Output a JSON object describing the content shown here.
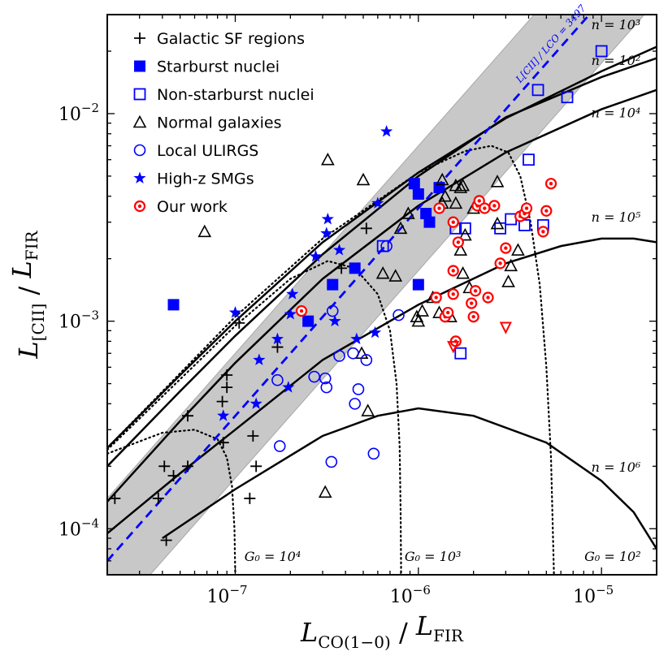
{
  "chart_data": {
    "type": "scatter",
    "x_scale": "log",
    "y_scale": "log",
    "xlim": [
      2e-08,
      2e-05
    ],
    "ylim": [
      6e-05,
      0.03
    ],
    "x_ticks": [
      {
        "value": 1e-07,
        "label": "10",
        "exp": "−7"
      },
      {
        "value": 1e-06,
        "label": "10",
        "exp": "−6"
      },
      {
        "value": 1e-05,
        "label": "10",
        "exp": "−5"
      }
    ],
    "y_ticks": [
      {
        "value": 0.0001,
        "label": "10",
        "exp": "−4"
      },
      {
        "value": 0.001,
        "label": "10",
        "exp": "−3"
      },
      {
        "value": 0.01,
        "label": "10",
        "exp": "−2"
      }
    ],
    "xlabel": {
      "main": "L",
      "sub": "CO(1−0)",
      "sep": " / ",
      "main2": "L",
      "sub2": "FIR"
    },
    "ylabel": {
      "main": "L",
      "sub": "[CII]",
      "sep": " / ",
      "main2": "L",
      "sub2": "FIR"
    },
    "legend_position": "top-left",
    "grid": false,
    "series": [
      {
        "name": "Galactic SF regions",
        "marker": "plus",
        "color": "#000000",
        "points": [
          [
            2.2e-08,
            0.00014
          ],
          [
            3.8e-08,
            0.00014
          ],
          [
            4.1e-08,
            0.0002
          ],
          [
            4.2e-08,
            8.8e-05
          ],
          [
            4.6e-08,
            0.00018
          ],
          [
            5.5e-08,
            0.00035
          ],
          [
            5.5e-08,
            0.0002
          ],
          [
            8.5e-08,
            0.00041
          ],
          [
            8.6e-08,
            0.00026
          ],
          [
            9e-08,
            0.00048
          ],
          [
            9e-08,
            0.00055
          ],
          [
            1.05e-07,
            0.00098
          ],
          [
            1.2e-07,
            0.00014
          ],
          [
            1.25e-07,
            0.00028
          ],
          [
            1.3e-07,
            0.0002
          ],
          [
            1.7e-07,
            0.00075
          ],
          [
            3.8e-07,
            0.0018
          ],
          [
            5.2e-07,
            0.0028
          ]
        ]
      },
      {
        "name": "Starburst nuclei",
        "marker": "square",
        "color": "#0000ff",
        "points": [
          [
            4.6e-08,
            0.0012
          ],
          [
            2.5e-07,
            0.001
          ],
          [
            3.4e-07,
            0.0015
          ],
          [
            4.5e-07,
            0.0018
          ],
          [
            9.5e-07,
            0.0046
          ],
          [
            1e-06,
            0.0041
          ],
          [
            1.1e-06,
            0.0033
          ],
          [
            1.15e-06,
            0.003
          ],
          [
            1.3e-06,
            0.0044
          ],
          [
            1e-06,
            0.0015
          ]
        ]
      },
      {
        "name": "Non-starburst nuclei",
        "marker": "square-open",
        "color": "#0000ff",
        "points": [
          [
            6.4e-07,
            0.0023
          ],
          [
            1.6e-06,
            0.0028
          ],
          [
            1.8e-06,
            0.0028
          ],
          [
            2.8e-06,
            0.0028
          ],
          [
            3.2e-06,
            0.0031
          ],
          [
            3.8e-06,
            0.0029
          ],
          [
            4e-06,
            0.006
          ],
          [
            4.5e-06,
            0.013
          ],
          [
            4.8e-06,
            0.0029
          ],
          [
            6.5e-06,
            0.012
          ],
          [
            1e-05,
            0.02
          ],
          [
            1.7e-06,
            0.0007
          ]
        ]
      },
      {
        "name": "Normal galaxies",
        "marker": "triangle-open",
        "color": "#000000",
        "points": [
          [
            6.8e-08,
            0.0027
          ],
          [
            3.2e-07,
            0.006
          ],
          [
            5e-07,
            0.0048
          ],
          [
            4.9e-07,
            0.0007
          ],
          [
            5.3e-07,
            0.00037
          ],
          [
            3.1e-07,
            0.00015
          ],
          [
            6.4e-07,
            0.0017
          ],
          [
            7.5e-07,
            0.00165
          ],
          [
            8e-07,
            0.0028
          ],
          [
            8.8e-07,
            0.0033
          ],
          [
            9.8e-07,
            0.00105
          ],
          [
            1e-06,
            0.001
          ],
          [
            1.05e-06,
            0.00112
          ],
          [
            1.2e-06,
            0.0013
          ],
          [
            1.3e-06,
            0.0011
          ],
          [
            1.35e-06,
            0.0037
          ],
          [
            1.35e-06,
            0.0048
          ],
          [
            1.4e-06,
            0.004
          ],
          [
            1.5e-06,
            0.00105
          ],
          [
            1.6e-06,
            0.0045
          ],
          [
            1.6e-06,
            0.0037
          ],
          [
            1.7e-06,
            0.0044
          ],
          [
            1.75e-06,
            0.0045
          ],
          [
            1.8e-06,
            0.0026
          ],
          [
            1.75e-06,
            0.0017
          ],
          [
            1.9e-06,
            0.00145
          ],
          [
            2e-06,
            0.0035
          ],
          [
            2.7e-06,
            0.0047
          ],
          [
            2.7e-06,
            0.00295
          ],
          [
            3.1e-06,
            0.00155
          ],
          [
            3.2e-06,
            0.00185
          ],
          [
            3.5e-06,
            0.0022
          ],
          [
            1.7e-06,
            0.0022
          ]
        ]
      },
      {
        "name": "Local ULIRGS",
        "marker": "circle-open",
        "color": "#0000ff",
        "points": [
          [
            1.7e-07,
            0.00052
          ],
          [
            1.75e-07,
            0.00025
          ],
          [
            2.7e-07,
            0.00054
          ],
          [
            3.1e-07,
            0.00053
          ],
          [
            3.15e-07,
            0.00048
          ],
          [
            3.35e-07,
            0.00021
          ],
          [
            3.4e-07,
            0.00112
          ],
          [
            3.7e-07,
            0.00068
          ],
          [
            4.4e-07,
            0.0007
          ],
          [
            4.5e-07,
            0.0004
          ],
          [
            4.7e-07,
            0.00047
          ],
          [
            5.2e-07,
            0.00065
          ],
          [
            5.7e-07,
            0.00023
          ],
          [
            6.7e-07,
            0.0023
          ],
          [
            7.8e-07,
            0.00107
          ]
        ]
      },
      {
        "name": "High-z SMGs",
        "marker": "star",
        "color": "#0000ff",
        "points": [
          [
            8.6e-08,
            0.00035
          ],
          [
            1e-07,
            0.0011
          ],
          [
            1.3e-07,
            0.0004
          ],
          [
            1.35e-07,
            0.00065
          ],
          [
            1.7e-07,
            0.00082
          ],
          [
            1.95e-07,
            0.00048
          ],
          [
            2e-07,
            0.00108
          ],
          [
            2.05e-07,
            0.00135
          ],
          [
            2.75e-07,
            0.00205
          ],
          [
            3.15e-07,
            0.00265
          ],
          [
            3.2e-07,
            0.0031
          ],
          [
            3.5e-07,
            0.001
          ],
          [
            3.7e-07,
            0.0022
          ],
          [
            4.6e-07,
            0.00082
          ],
          [
            5.8e-07,
            0.00088
          ],
          [
            6e-07,
            0.0037
          ],
          [
            6.7e-07,
            0.0082
          ]
        ]
      },
      {
        "name": "Our work",
        "marker": "circle-dot",
        "color": "#ff0000",
        "points": [
          [
            2.3e-07,
            0.00112
          ],
          [
            1.25e-06,
            0.0013
          ],
          [
            1.3e-06,
            0.0035
          ],
          [
            1.4e-06,
            0.00105
          ],
          [
            1.45e-06,
            0.0011
          ],
          [
            1.55e-06,
            0.00175
          ],
          [
            1.55e-06,
            0.00135
          ],
          [
            1.55e-06,
            0.003
          ],
          [
            1.6e-06,
            0.0008
          ],
          [
            1.65e-06,
            0.0024
          ],
          [
            1.95e-06,
            0.00122
          ],
          [
            2e-06,
            0.00105
          ],
          [
            2.05e-06,
            0.0014
          ],
          [
            2.1e-06,
            0.0036
          ],
          [
            2.15e-06,
            0.0038
          ],
          [
            2.3e-06,
            0.0035
          ],
          [
            2.4e-06,
            0.0013
          ],
          [
            2.6e-06,
            0.0036
          ],
          [
            2.8e-06,
            0.0019
          ],
          [
            3e-06,
            0.00225
          ],
          [
            3.6e-06,
            0.0032
          ],
          [
            3.8e-06,
            0.0033
          ],
          [
            3.9e-06,
            0.0035
          ],
          [
            4.8e-06,
            0.0027
          ],
          [
            5e-06,
            0.0034
          ],
          [
            5.3e-06,
            0.0046
          ]
        ]
      },
      {
        "name": "",
        "marker": "triangle-down-open",
        "color": "#ff0000",
        "legend": false,
        "points": [
          [
            1.55e-06,
            0.00076
          ],
          [
            3e-06,
            0.00094
          ]
        ]
      }
    ],
    "lines": [
      {
        "style": "solid",
        "color": "#000000",
        "label": "n = 10³",
        "points": [
          [
            2e-08,
            0.000245
          ],
          [
            5e-08,
            0.00055
          ],
          [
            1e-07,
            0.001
          ],
          [
            3e-07,
            0.0024
          ],
          [
            1e-06,
            0.0052
          ],
          [
            3e-06,
            0.0095
          ],
          [
            1e-05,
            0.016
          ],
          [
            2e-05,
            0.021
          ]
        ]
      },
      {
        "style": "solid",
        "color": "#000000",
        "label": "n = 10²",
        "points": [
          [
            2e-08,
            0.0002
          ],
          [
            5e-08,
            0.00046
          ],
          [
            1e-07,
            0.00085
          ],
          [
            3e-07,
            0.0021
          ],
          [
            1e-06,
            0.005
          ],
          [
            3e-06,
            0.0096
          ],
          [
            1e-05,
            0.015
          ],
          [
            2e-05,
            0.0185
          ]
        ]
      },
      {
        "style": "solid",
        "color": "#000000",
        "label": "n = 10⁴",
        "points": [
          [
            2e-08,
            0.000135
          ],
          [
            5e-08,
            0.00033
          ],
          [
            1e-07,
            0.00063
          ],
          [
            3e-07,
            0.0016
          ],
          [
            1e-06,
            0.0036
          ],
          [
            3e-06,
            0.0065
          ],
          [
            1e-05,
            0.0105
          ],
          [
            2e-05,
            0.013
          ]
        ]
      },
      {
        "style": "solid",
        "color": "#000000",
        "label": "n = 10⁵",
        "points": [
          [
            2e-08,
            9.5e-05
          ],
          [
            5e-08,
            0.000185
          ],
          [
            1e-07,
            0.0003
          ],
          [
            3e-07,
            0.00065
          ],
          [
            1e-06,
            0.0012
          ],
          [
            3e-06,
            0.0019
          ],
          [
            6e-06,
            0.0023
          ],
          [
            1e-05,
            0.0025
          ],
          [
            1.5e-05,
            0.0025
          ],
          [
            2e-05,
            0.0024
          ]
        ]
      },
      {
        "style": "solid",
        "color": "#000000",
        "label": "n = 10⁶",
        "points": [
          [
            4e-08,
            9e-05
          ],
          [
            1e-07,
            0.000155
          ],
          [
            3e-07,
            0.00028
          ],
          [
            6e-07,
            0.00035
          ],
          [
            1e-06,
            0.00038
          ],
          [
            2e-06,
            0.00035
          ],
          [
            5e-06,
            0.00026
          ],
          [
            1e-05,
            0.00017
          ],
          [
            1.5e-05,
            0.00012
          ],
          [
            2e-05,
            8e-05
          ]
        ]
      },
      {
        "style": "dotted",
        "color": "#000000",
        "label": "G₀ = 10⁴",
        "points": [
          [
            2e-08,
            0.00023
          ],
          [
            4e-08,
            0.00029
          ],
          [
            6e-08,
            0.0003
          ],
          [
            8e-08,
            0.00027
          ],
          [
            9e-08,
            0.00022
          ],
          [
            9.6e-08,
            0.00016
          ],
          [
            9.9e-08,
            0.0001
          ],
          [
            1e-07,
            6e-05
          ]
        ]
      },
      {
        "style": "dotted",
        "color": "#000000",
        "label": "G₀ = 10³",
        "points": [
          [
            2e-08,
            0.00024
          ],
          [
            1e-07,
            0.00095
          ],
          [
            2e-07,
            0.0016
          ],
          [
            3.2e-07,
            0.00195
          ],
          [
            4.5e-07,
            0.0018
          ],
          [
            6e-07,
            0.00135
          ],
          [
            7e-07,
            0.0009
          ],
          [
            7.6e-07,
            0.0005
          ],
          [
            7.9e-07,
            0.00025
          ],
          [
            8e-07,
            0.00012
          ],
          [
            8.05e-07,
            6e-05
          ]
        ]
      },
      {
        "style": "dotted",
        "color": "#000000",
        "label": "G₀ = 10²",
        "points": [
          [
            2e-08,
            0.000245
          ],
          [
            1e-07,
            0.00105
          ],
          [
            3e-07,
            0.0025
          ],
          [
            1e-06,
            0.0052
          ],
          [
            1.8e-06,
            0.0066
          ],
          [
            2.5e-06,
            0.007
          ],
          [
            3.1e-06,
            0.0065
          ],
          [
            3.6e-06,
            0.005
          ],
          [
            4.1e-06,
            0.003
          ],
          [
            4.6e-06,
            0.0015
          ],
          [
            5e-06,
            0.0006
          ],
          [
            5.3e-06,
            0.00022
          ],
          [
            5.5e-06,
            6e-05
          ]
        ]
      },
      {
        "style": "dashed",
        "color": "#0000ff",
        "label": "L[CII] / LCO = 3497",
        "ratio": 3497
      }
    ],
    "band": {
      "ratio_low": 1750,
      "ratio_high": 7000,
      "color": "#c8c8c8"
    },
    "annotations": [
      {
        "text": "n = 10³",
        "x": 1.2e-05,
        "y": 0.0255
      },
      {
        "text": "n = 10²",
        "x": 1.2e-05,
        "y": 0.0172
      },
      {
        "text": "n = 10⁴",
        "x": 1.2e-05,
        "y": 0.0096
      },
      {
        "text": "n = 10⁵",
        "x": 1.2e-05,
        "y": 0.00302
      },
      {
        "text": "n = 10⁶",
        "x": 1.2e-05,
        "y": 0.000188
      },
      {
        "text": "G₀ = 10⁴",
        "x": 1.6e-07,
        "y": 7e-05
      },
      {
        "text": "G₀ = 10³",
        "x": 1.2e-06,
        "y": 7e-05
      },
      {
        "text": "G₀ = 10²",
        "x": 1.15e-05,
        "y": 7e-05
      }
    ],
    "line_label": {
      "text": "L[CII] / LCO = 3497",
      "x": 3.6e-06,
      "y": 0.014
    }
  }
}
